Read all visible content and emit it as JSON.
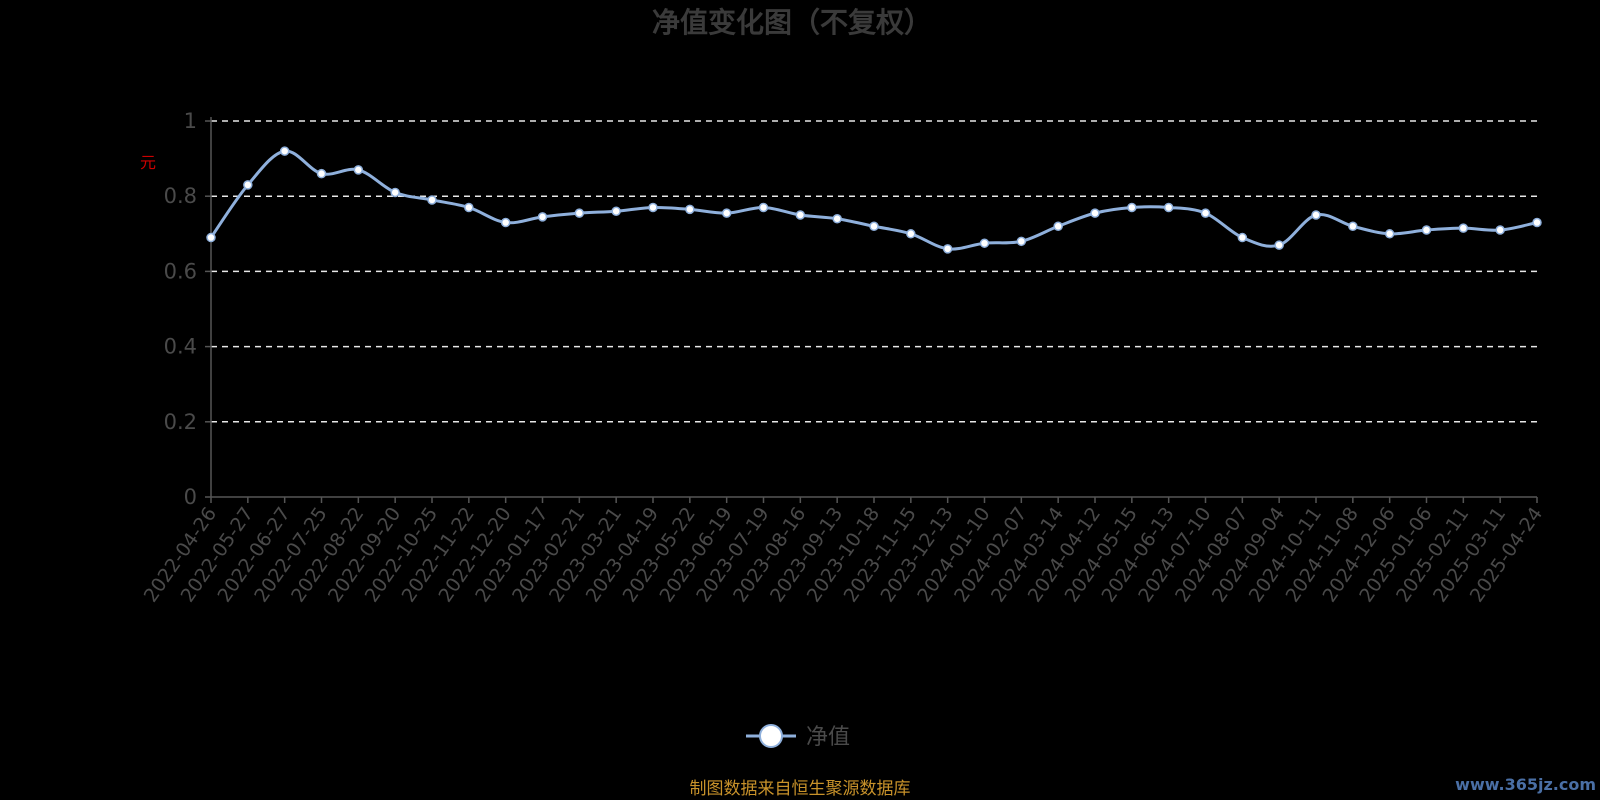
{
  "chart_data": {
    "type": "line",
    "title": "净值变化图（不复权）",
    "ylabel": "元",
    "ylim": [
      0,
      1
    ],
    "y_ticks": [
      "0",
      "0.2",
      "0.4",
      "0.6",
      "0.8",
      "1"
    ],
    "grid": true,
    "legend_position": "bottom",
    "x_tick_labels": [
      "2022-04-26",
      "2022-05-27",
      "2022-06-27",
      "2022-07-25",
      "2022-08-22",
      "2022-09-20",
      "2022-10-25",
      "2022-11-22",
      "2022-12-20",
      "2023-01-17",
      "2023-02-21",
      "2023-03-21",
      "2023-04-19",
      "2023-05-22",
      "2023-06-19",
      "2023-07-19",
      "2023-08-16",
      "2023-09-13",
      "2023-10-18",
      "2023-11-15",
      "2023-12-13",
      "2024-01-10",
      "2024-02-07",
      "2024-03-14",
      "2024-04-12",
      "2024-05-15",
      "2024-06-13",
      "2024-07-10",
      "2024-08-07",
      "2024-09-04",
      "2024-10-11",
      "2024-11-08",
      "2024-12-06",
      "2025-01-06",
      "2025-02-11",
      "2025-03-11",
      "2025-04-24"
    ],
    "series": [
      {
        "name": "净值",
        "color": "#8fb0dc",
        "x": [
          "2022-04-26",
          "2022-05-27",
          "2022-06-27",
          "2022-07-25",
          "2022-08-22",
          "2022-09-20",
          "2022-10-25",
          "2022-11-22",
          "2022-12-20",
          "2023-01-17",
          "2023-02-21",
          "2023-03-21",
          "2023-04-19",
          "2023-05-22",
          "2023-06-19",
          "2023-07-19",
          "2023-08-16",
          "2023-09-13",
          "2023-10-18",
          "2023-11-15",
          "2023-12-13",
          "2024-01-10",
          "2024-02-07",
          "2024-03-14",
          "2024-04-12",
          "2024-05-15",
          "2024-06-13",
          "2024-07-10",
          "2024-08-07",
          "2024-09-04",
          "2024-10-11",
          "2024-11-08",
          "2024-12-06",
          "2025-01-06",
          "2025-02-11",
          "2025-03-11",
          "2025-04-24"
        ],
        "values": [
          0.69,
          0.83,
          0.92,
          0.86,
          0.87,
          0.81,
          0.79,
          0.77,
          0.73,
          0.745,
          0.755,
          0.76,
          0.77,
          0.765,
          0.755,
          0.77,
          0.75,
          0.74,
          0.72,
          0.7,
          0.66,
          0.675,
          0.68,
          0.72,
          0.755,
          0.77,
          0.77,
          0.755,
          0.69,
          0.67,
          0.75,
          0.72,
          0.7,
          0.71,
          0.715,
          0.71,
          0.73
        ]
      }
    ]
  },
  "legend": {
    "label": "净值"
  },
  "footer": {
    "source": "制图数据来自恒生聚源数据库",
    "watermark": "www.365jz.com"
  }
}
